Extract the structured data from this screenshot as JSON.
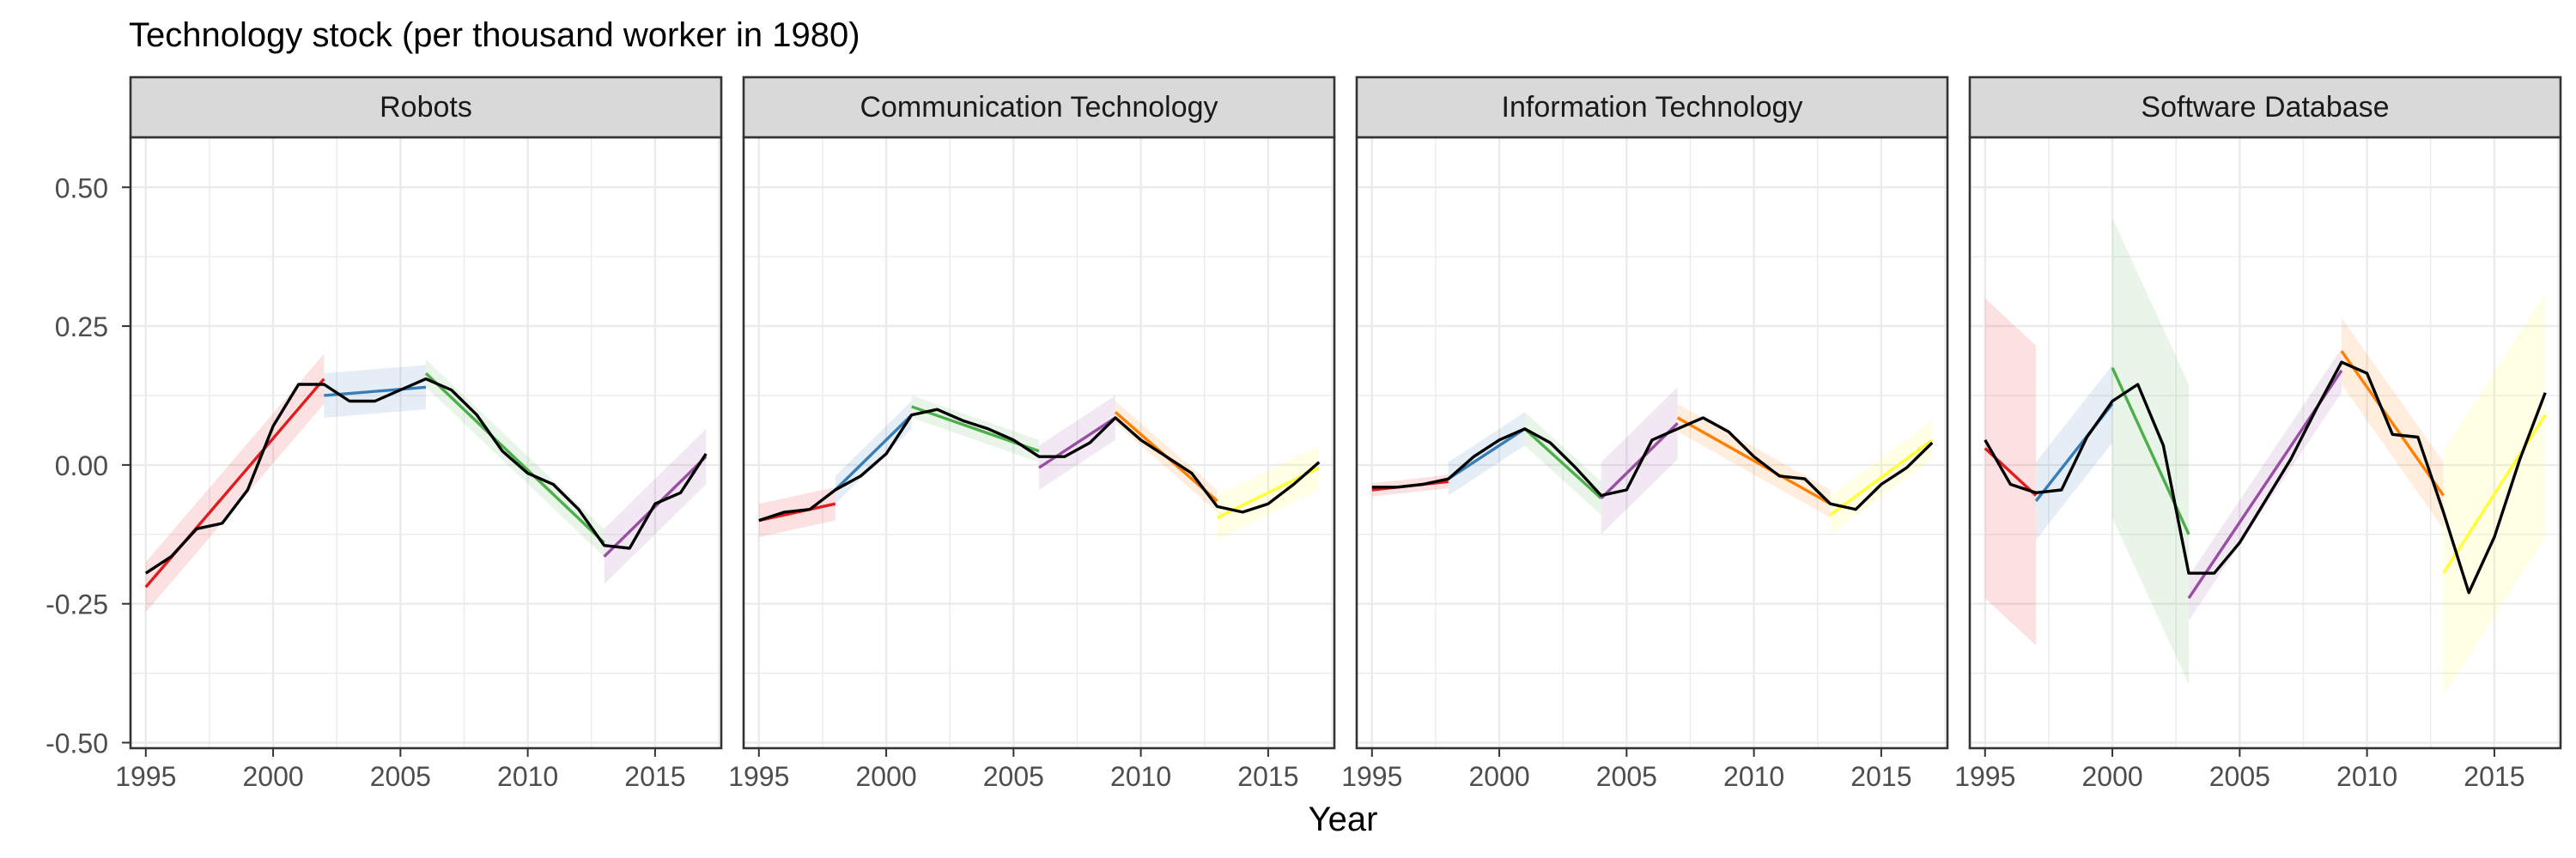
{
  "chart_data": {
    "type": "line",
    "title": "Technology stock (per thousand worker in 1980)",
    "xlabel": "Year",
    "ylabel": "",
    "xlim": [
      1994.4,
      2017.6
    ],
    "ylim": [
      -0.51,
      0.59
    ],
    "x_ticks": [
      "1995",
      "2000",
      "2005",
      "2010",
      "2015"
    ],
    "y_ticks": [
      "0.50",
      "0.25",
      "0.00",
      "-0.25",
      "-0.50"
    ],
    "grid": true,
    "colors": {
      "series": "#000000",
      "segments": [
        "#e41a1c",
        "#377eb8",
        "#4daf4a",
        "#984ea3",
        "#ff7f00",
        "#ffff33"
      ],
      "strip_bg": "#d9d9d9",
      "grid": "#ebebeb"
    },
    "panels": [
      {
        "name": "Robots",
        "x": [
          1995,
          1996,
          1997,
          1998,
          1999,
          2000,
          2001,
          2002,
          2003,
          2004,
          2005,
          2006,
          2007,
          2008,
          2009,
          2010,
          2011,
          2012,
          2013,
          2014,
          2015,
          2016,
          2017
        ],
        "y": [
          -0.195,
          -0.165,
          -0.115,
          -0.105,
          -0.045,
          0.07,
          0.145,
          0.145,
          0.115,
          0.115,
          0.135,
          0.155,
          0.135,
          0.09,
          0.025,
          -0.015,
          -0.035,
          -0.08,
          -0.145,
          -0.15,
          -0.07,
          -0.05,
          0.02
        ],
        "segments": [
          {
            "x": [
              1995,
              2002
            ],
            "y": [
              -0.22,
              0.155
            ],
            "band": 0.045
          },
          {
            "x": [
              2002,
              2006
            ],
            "y": [
              0.125,
              0.14
            ],
            "band": 0.04
          },
          {
            "x": [
              2006,
              2013
            ],
            "y": [
              0.165,
              -0.14
            ],
            "band": 0.025
          },
          {
            "x": [
              2013,
              2017
            ],
            "y": [
              -0.165,
              0.015
            ],
            "band": 0.05
          }
        ]
      },
      {
        "name": "Communication Technology",
        "x": [
          1995,
          1996,
          1997,
          1998,
          1999,
          2000,
          2001,
          2002,
          2003,
          2004,
          2005,
          2006,
          2007,
          2008,
          2009,
          2010,
          2011,
          2012,
          2013,
          2014,
          2015,
          2016,
          2017
        ],
        "y": [
          -0.1,
          -0.085,
          -0.08,
          -0.045,
          -0.02,
          0.02,
          0.09,
          0.1,
          0.08,
          0.065,
          0.045,
          0.015,
          0.015,
          0.04,
          0.085,
          0.045,
          0.015,
          -0.015,
          -0.075,
          -0.085,
          -0.07,
          -0.035,
          0.005
        ],
        "segments": [
          {
            "x": [
              1995,
              1998
            ],
            "y": [
              -0.1,
              -0.07
            ],
            "band": 0.03
          },
          {
            "x": [
              1998,
              2001
            ],
            "y": [
              -0.045,
              0.09
            ],
            "band": 0.025
          },
          {
            "x": [
              2001,
              2006
            ],
            "y": [
              0.105,
              0.025
            ],
            "band": 0.02
          },
          {
            "x": [
              2006,
              2009
            ],
            "y": [
              -0.005,
              0.085
            ],
            "band": 0.04
          },
          {
            "x": [
              2009,
              2013
            ],
            "y": [
              0.095,
              -0.065
            ],
            "band": 0.02
          },
          {
            "x": [
              2013,
              2017
            ],
            "y": [
              -0.095,
              -0.005
            ],
            "band": 0.04
          }
        ]
      },
      {
        "name": "Information Technology",
        "x": [
          1995,
          1996,
          1997,
          1998,
          1999,
          2000,
          2001,
          2002,
          2003,
          2004,
          2005,
          2006,
          2007,
          2008,
          2009,
          2010,
          2011,
          2012,
          2013,
          2014,
          2015,
          2016,
          2017
        ],
        "y": [
          -0.04,
          -0.04,
          -0.035,
          -0.025,
          0.015,
          0.045,
          0.065,
          0.04,
          -0.005,
          -0.055,
          -0.045,
          0.045,
          0.065,
          0.085,
          0.06,
          0.015,
          -0.02,
          -0.025,
          -0.07,
          -0.08,
          -0.035,
          -0.005,
          0.04
        ],
        "segments": [
          {
            "x": [
              1995,
              1998
            ],
            "y": [
              -0.045,
              -0.03
            ],
            "band": 0.012
          },
          {
            "x": [
              1998,
              2001
            ],
            "y": [
              -0.025,
              0.065
            ],
            "band": 0.03
          },
          {
            "x": [
              2001,
              2004
            ],
            "y": [
              0.065,
              -0.06
            ],
            "band": 0.03
          },
          {
            "x": [
              2004,
              2007
            ],
            "y": [
              -0.06,
              0.075
            ],
            "band": 0.065
          },
          {
            "x": [
              2007,
              2013
            ],
            "y": [
              0.085,
              -0.07
            ],
            "band": 0.025
          },
          {
            "x": [
              2013,
              2017
            ],
            "y": [
              -0.09,
              0.045
            ],
            "band": 0.035
          }
        ]
      },
      {
        "name": "Software Database",
        "x": [
          1995,
          1996,
          1997,
          1998,
          1999,
          2000,
          2001,
          2002,
          2003,
          2004,
          2005,
          2006,
          2007,
          2008,
          2009,
          2010,
          2011,
          2012,
          2013,
          2014,
          2015,
          2016,
          2017
        ],
        "y": [
          0.045,
          -0.035,
          -0.05,
          -0.045,
          0.05,
          0.115,
          0.145,
          0.035,
          -0.195,
          -0.195,
          -0.14,
          -0.065,
          0.01,
          0.1,
          0.185,
          0.165,
          0.055,
          0.05,
          -0.085,
          -0.23,
          -0.13,
          0.01,
          0.13
        ],
        "segments": [
          {
            "x": [
              1995,
              1997
            ],
            "y": [
              0.03,
              -0.055
            ],
            "band": 0.27
          },
          {
            "x": [
              1997,
              2000
            ],
            "y": [
              -0.065,
              0.11
            ],
            "band": 0.07
          },
          {
            "x": [
              2000,
              2003
            ],
            "y": [
              0.175,
              -0.125
            ],
            "band": 0.27
          },
          {
            "x": [
              2003,
              2009
            ],
            "y": [
              -0.24,
              0.17
            ],
            "band": 0.04
          },
          {
            "x": [
              2009,
              2013
            ],
            "y": [
              0.205,
              -0.055
            ],
            "band": 0.06
          },
          {
            "x": [
              2013,
              2017
            ],
            "y": [
              -0.195,
              0.09
            ],
            "band": 0.22
          }
        ]
      }
    ]
  }
}
